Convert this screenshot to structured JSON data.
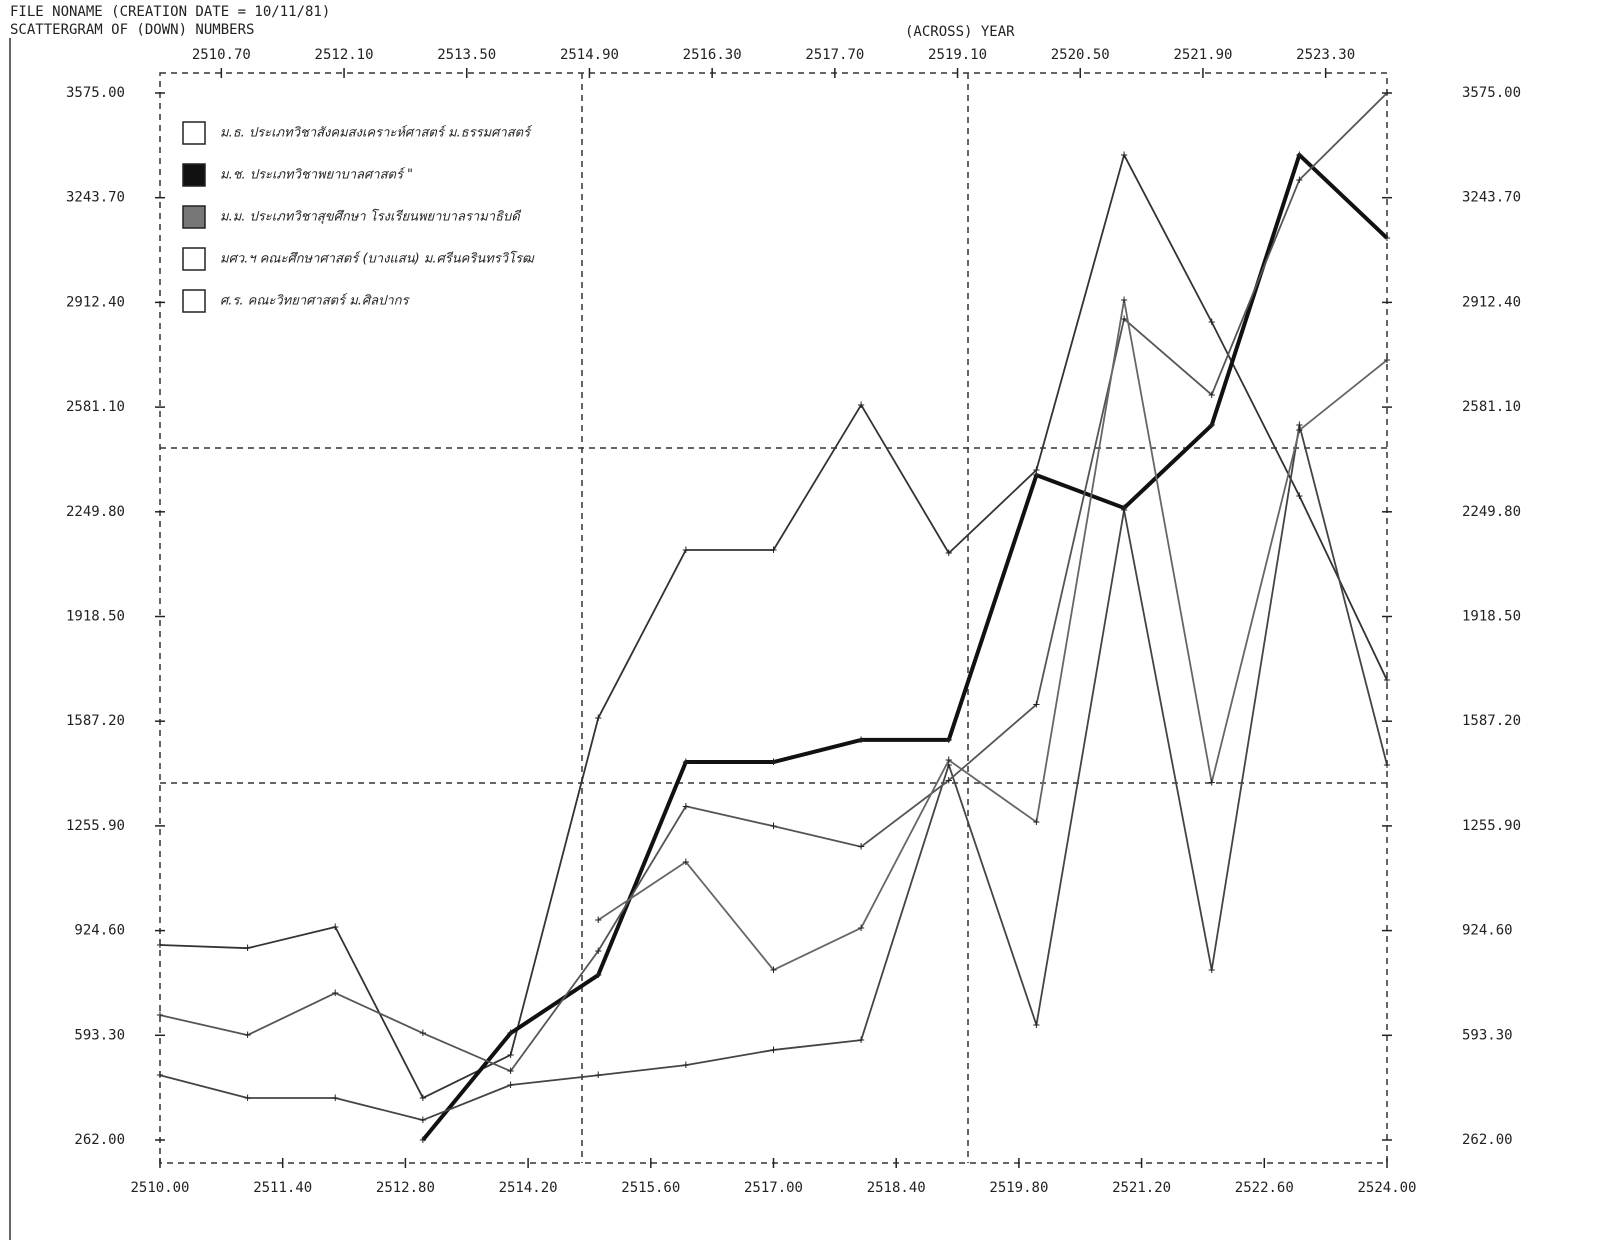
{
  "chart_data": {
    "type": "line",
    "header": "FILE    NONAME    (CREATION DATE = 10/11/81)",
    "title": "SCATTERGRAM OF    (DOWN) NUMBERS",
    "x_label": "(ACROSS) YEAR",
    "x": [
      2510,
      2511,
      2512,
      2513,
      2514,
      2515,
      2516,
      2517,
      2518,
      2519,
      2520,
      2521,
      2522,
      2523,
      2524
    ],
    "xlim": [
      2510,
      2524
    ],
    "xticks": [
      {
        "value": 2510,
        "label": "2510.00"
      },
      {
        "value": 2511.4,
        "label": "2511.40"
      },
      {
        "value": 2512.8,
        "label": "2512.80"
      },
      {
        "value": 2514.2,
        "label": "2514.20"
      },
      {
        "value": 2515.6,
        "label": "2515.60"
      },
      {
        "value": 2517,
        "label": "2517.00"
      },
      {
        "value": 2518.4,
        "label": "2518.40"
      },
      {
        "value": 2519.8,
        "label": "2519.80"
      },
      {
        "value": 2521.2,
        "label": "2521.20"
      },
      {
        "value": 2522.6,
        "label": "2522.60"
      },
      {
        "value": 2524,
        "label": "2524.00"
      }
    ],
    "x2ticks": [
      {
        "value": 2510.7,
        "label": "2510.70"
      },
      {
        "value": 2512.1,
        "label": "2512.10"
      },
      {
        "value": 2513.5,
        "label": "2513.50"
      },
      {
        "value": 2514.9,
        "label": "2514.90"
      },
      {
        "value": 2516.3,
        "label": "2516.30"
      },
      {
        "value": 2517.7,
        "label": "2517.70"
      },
      {
        "value": 2519.1,
        "label": "2519.10"
      },
      {
        "value": 2520.5,
        "label": "2520.50"
      },
      {
        "value": 2521.9,
        "label": "2521.90"
      },
      {
        "value": 2523.3,
        "label": "2523.30"
      }
    ],
    "ylim": [
      262,
      3575
    ],
    "yticks": [
      {
        "value": 262,
        "label": "262.00"
      },
      {
        "value": 593.3,
        "label": "593.30"
      },
      {
        "value": 924.6,
        "label": "924.60"
      },
      {
        "value": 1255.9,
        "label": "1255.90"
      },
      {
        "value": 1587.2,
        "label": "1587.20"
      },
      {
        "value": 1918.5,
        "label": "1918.50"
      },
      {
        "value": 2249.8,
        "label": "2249.80"
      },
      {
        "value": 2581.1,
        "label": "2581.10"
      },
      {
        "value": 2912.4,
        "label": "2912.40"
      },
      {
        "value": 3243.7,
        "label": "3243.70"
      },
      {
        "value": 3575,
        "label": "3575.00"
      }
    ],
    "series": [
      {
        "name": "ม.ธ.  ประเภทวิชาสังคมสงเคราะห์ศาสตร์  ม.ธรรมศาสตร์",
        "color": "#333333",
        "legend_fill": "#ffffff",
        "values": [
          879,
          869,
          936,
          395,
          531,
          1597,
          2129,
          2129,
          2588,
          2119,
          2382,
          3379,
          2850,
          2300,
          1717
        ]
      },
      {
        "name": "ม.ช.  ประเภทวิชาพยาบาลศาสตร์   \"",
        "color": "#111111",
        "legend_fill": "#111111",
        "values": [
          null,
          null,
          null,
          262,
          600,
          784,
          1458,
          1458,
          1528,
          1528,
          2366,
          2262,
          2524,
          3379,
          3116
        ]
      },
      {
        "name": "ม.ม.  ประเภทวิชาสุขศึกษา โรงเรียนพยาบาลรามาธิบดี",
        "color": "#444444",
        "legend_fill": "#777777",
        "values": [
          467,
          395,
          395,
          325,
          436,
          467,
          499,
          547,
          578,
          1449,
          626,
          2255,
          800,
          2524,
          1449
        ]
      },
      {
        "name": "มศว.ฯ  คณะศึกษาศาสตร์ (บางแสน)  ม.ศรีนครินทรวิโรฒ",
        "color": "#555555",
        "legend_fill": "#ffffff",
        "values": [
          657,
          594,
          727,
          600,
          480,
          860,
          1318,
          1255,
          1190,
          1400,
          1640,
          2860,
          2620,
          3300,
          3575
        ]
      },
      {
        "name": "ศ.ร.  คณะวิทยาศาสตร์  ม.ศิลปากร",
        "color": "#666666",
        "legend_fill": "#ffffff",
        "values": [
          null,
          null,
          null,
          null,
          null,
          958,
          1142,
          800,
          933,
          1464,
          1268,
          2920,
          1393,
          2508,
          2730
        ]
      }
    ]
  }
}
